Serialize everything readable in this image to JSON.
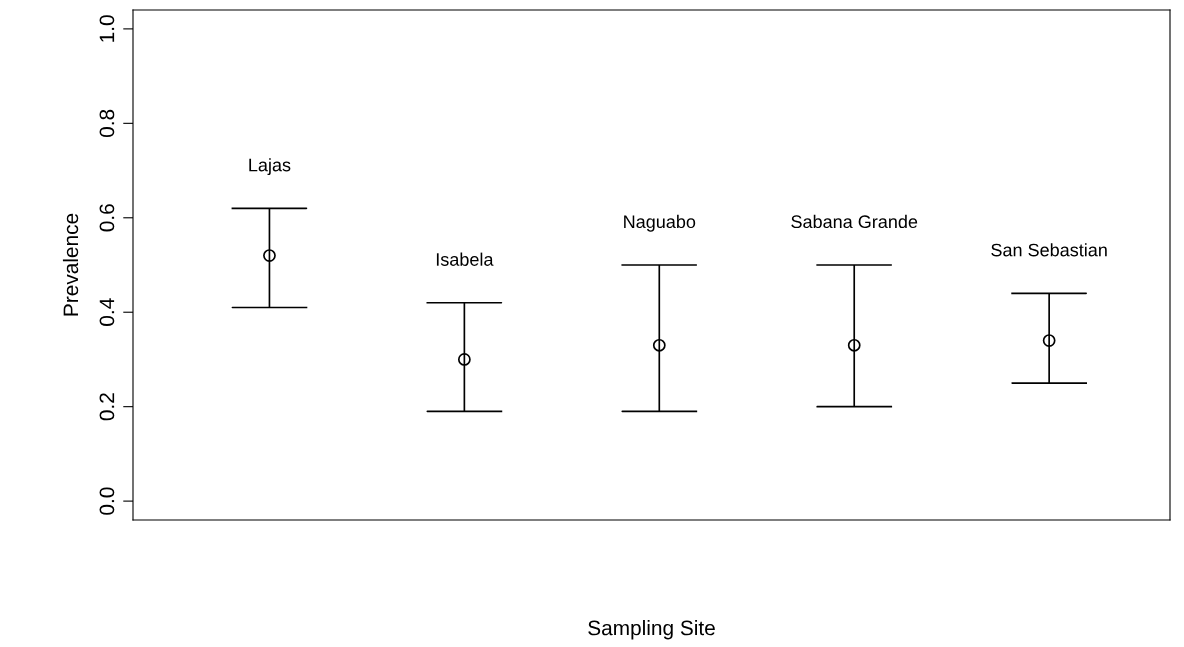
{
  "chart_data": {
    "type": "scatter",
    "xlabel": "Sampling Site",
    "ylabel": "Prevalence",
    "categories": [
      "Lajas",
      "Isabela",
      "Naguabo",
      "Sabana Grande",
      "San Sebastian"
    ],
    "values": [
      0.52,
      0.3,
      0.33,
      0.33,
      0.34
    ],
    "errors": [
      [
        0.41,
        0.62
      ],
      [
        0.19,
        0.42
      ],
      [
        0.19,
        0.5
      ],
      [
        0.2,
        0.5
      ],
      [
        0.25,
        0.44
      ]
    ],
    "color": "#000000",
    "marker": "circle",
    "ylim": [
      -0.04,
      1.04
    ],
    "yticks": [
      {
        "value": 0,
        "label": "0.0"
      },
      0.2,
      0.4,
      0.6,
      0.8,
      {
        "value": 1,
        "label": "1.0"
      }
    ],
    "tick_labels": "y",
    "grid": false
  }
}
